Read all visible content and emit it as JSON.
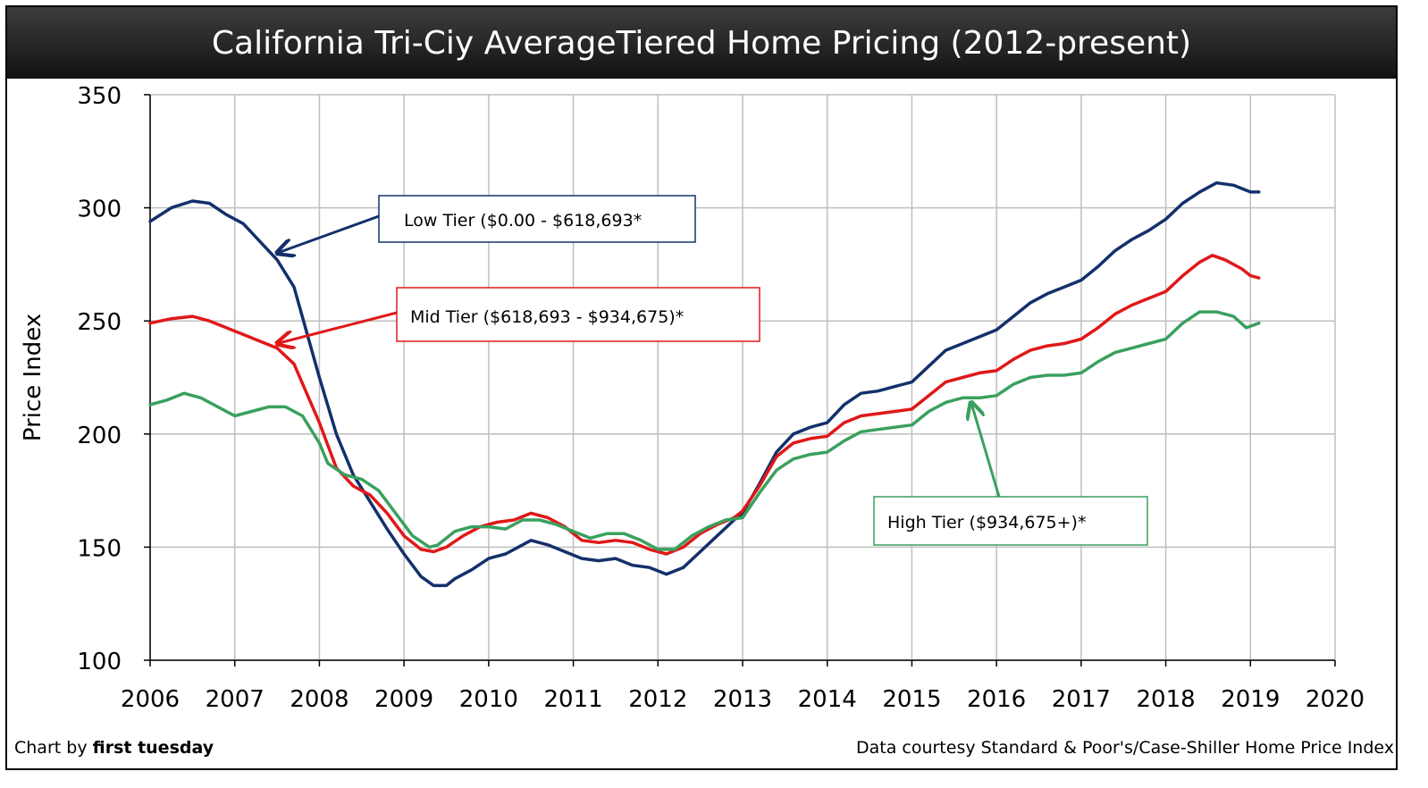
{
  "chart_data": {
    "type": "line",
    "title": "California Tri-Ciy AverageTiered Home Pricing (2012-present)",
    "ylabel": "Price Index",
    "xlabel": "",
    "xlim": [
      2006,
      2020
    ],
    "ylim": [
      100,
      350
    ],
    "x_ticks": [
      "2006",
      "2007",
      "2008",
      "2009",
      "2010",
      "2011",
      "2012",
      "2013",
      "2014",
      "2015",
      "2016",
      "2017",
      "2018",
      "2019",
      "2020"
    ],
    "y_ticks": [
      "100",
      "150",
      "200",
      "250",
      "300",
      "350"
    ],
    "grid": true,
    "colors": {
      "low": "#13306b",
      "mid": "#e01818",
      "high": "#3aa05e"
    },
    "series": [
      {
        "key": "low",
        "name": "Low Tier ($0.00 - $618,693*",
        "color": "#13306b",
        "points": [
          [
            2006.0,
            294
          ],
          [
            2006.25,
            300
          ],
          [
            2006.5,
            303
          ],
          [
            2006.7,
            302
          ],
          [
            2006.9,
            297
          ],
          [
            2007.1,
            293
          ],
          [
            2007.3,
            285
          ],
          [
            2007.5,
            277
          ],
          [
            2007.7,
            265
          ],
          [
            2007.85,
            245
          ],
          [
            2008.0,
            225
          ],
          [
            2008.2,
            200
          ],
          [
            2008.4,
            182
          ],
          [
            2008.6,
            170
          ],
          [
            2008.8,
            158
          ],
          [
            2009.0,
            147
          ],
          [
            2009.2,
            137
          ],
          [
            2009.35,
            133
          ],
          [
            2009.5,
            133
          ],
          [
            2009.6,
            136
          ],
          [
            2009.8,
            140
          ],
          [
            2010.0,
            145
          ],
          [
            2010.2,
            147
          ],
          [
            2010.35,
            150
          ],
          [
            2010.5,
            153
          ],
          [
            2010.7,
            151
          ],
          [
            2010.9,
            148
          ],
          [
            2011.1,
            145
          ],
          [
            2011.3,
            144
          ],
          [
            2011.5,
            145
          ],
          [
            2011.7,
            142
          ],
          [
            2011.9,
            141
          ],
          [
            2012.1,
            138
          ],
          [
            2012.3,
            141
          ],
          [
            2012.5,
            148
          ],
          [
            2012.7,
            155
          ],
          [
            2012.9,
            162
          ],
          [
            2013.0,
            165
          ],
          [
            2013.2,
            178
          ],
          [
            2013.4,
            192
          ],
          [
            2013.6,
            200
          ],
          [
            2013.8,
            203
          ],
          [
            2014.0,
            205
          ],
          [
            2014.2,
            213
          ],
          [
            2014.4,
            218
          ],
          [
            2014.6,
            219
          ],
          [
            2014.8,
            221
          ],
          [
            2015.0,
            223
          ],
          [
            2015.2,
            230
          ],
          [
            2015.4,
            237
          ],
          [
            2015.6,
            240
          ],
          [
            2015.8,
            243
          ],
          [
            2016.0,
            246
          ],
          [
            2016.2,
            252
          ],
          [
            2016.4,
            258
          ],
          [
            2016.6,
            262
          ],
          [
            2016.8,
            265
          ],
          [
            2017.0,
            268
          ],
          [
            2017.2,
            274
          ],
          [
            2017.4,
            281
          ],
          [
            2017.6,
            286
          ],
          [
            2017.8,
            290
          ],
          [
            2018.0,
            295
          ],
          [
            2018.2,
            302
          ],
          [
            2018.4,
            307
          ],
          [
            2018.6,
            311
          ],
          [
            2018.8,
            310
          ],
          [
            2019.0,
            307
          ],
          [
            2019.1,
            307
          ]
        ]
      },
      {
        "key": "mid",
        "name": "Mid Tier ($618,693 - $934,675)*",
        "color": "#e01818",
        "points": [
          [
            2006.0,
            249
          ],
          [
            2006.25,
            251
          ],
          [
            2006.5,
            252
          ],
          [
            2006.7,
            250
          ],
          [
            2006.9,
            247
          ],
          [
            2007.1,
            244
          ],
          [
            2007.3,
            241
          ],
          [
            2007.5,
            238
          ],
          [
            2007.7,
            231
          ],
          [
            2007.85,
            218
          ],
          [
            2008.0,
            205
          ],
          [
            2008.2,
            185
          ],
          [
            2008.4,
            177
          ],
          [
            2008.6,
            173
          ],
          [
            2008.8,
            165
          ],
          [
            2009.0,
            155
          ],
          [
            2009.2,
            149
          ],
          [
            2009.35,
            148
          ],
          [
            2009.5,
            150
          ],
          [
            2009.7,
            155
          ],
          [
            2009.9,
            159
          ],
          [
            2010.1,
            161
          ],
          [
            2010.3,
            162
          ],
          [
            2010.5,
            165
          ],
          [
            2010.7,
            163
          ],
          [
            2010.9,
            159
          ],
          [
            2011.1,
            153
          ],
          [
            2011.3,
            152
          ],
          [
            2011.5,
            153
          ],
          [
            2011.7,
            152
          ],
          [
            2011.9,
            149
          ],
          [
            2012.1,
            147
          ],
          [
            2012.3,
            150
          ],
          [
            2012.5,
            156
          ],
          [
            2012.7,
            160
          ],
          [
            2012.9,
            163
          ],
          [
            2013.0,
            166
          ],
          [
            2013.2,
            177
          ],
          [
            2013.4,
            190
          ],
          [
            2013.6,
            196
          ],
          [
            2013.8,
            198
          ],
          [
            2014.0,
            199
          ],
          [
            2014.2,
            205
          ],
          [
            2014.4,
            208
          ],
          [
            2014.6,
            209
          ],
          [
            2014.8,
            210
          ],
          [
            2015.0,
            211
          ],
          [
            2015.2,
            217
          ],
          [
            2015.4,
            223
          ],
          [
            2015.6,
            225
          ],
          [
            2015.8,
            227
          ],
          [
            2016.0,
            228
          ],
          [
            2016.2,
            233
          ],
          [
            2016.4,
            237
          ],
          [
            2016.6,
            239
          ],
          [
            2016.8,
            240
          ],
          [
            2017.0,
            242
          ],
          [
            2017.2,
            247
          ],
          [
            2017.4,
            253
          ],
          [
            2017.6,
            257
          ],
          [
            2017.8,
            260
          ],
          [
            2018.0,
            263
          ],
          [
            2018.2,
            270
          ],
          [
            2018.4,
            276
          ],
          [
            2018.55,
            279
          ],
          [
            2018.7,
            277
          ],
          [
            2018.9,
            273
          ],
          [
            2019.0,
            270
          ],
          [
            2019.1,
            269
          ]
        ]
      },
      {
        "key": "high",
        "name": "High Tier ($934,675+)*",
        "color": "#3aa05e",
        "points": [
          [
            2006.0,
            213
          ],
          [
            2006.2,
            215
          ],
          [
            2006.4,
            218
          ],
          [
            2006.6,
            216
          ],
          [
            2006.8,
            212
          ],
          [
            2007.0,
            208
          ],
          [
            2007.2,
            210
          ],
          [
            2007.4,
            212
          ],
          [
            2007.6,
            212
          ],
          [
            2007.8,
            208
          ],
          [
            2008.0,
            196
          ],
          [
            2008.1,
            187
          ],
          [
            2008.3,
            182
          ],
          [
            2008.5,
            180
          ],
          [
            2008.7,
            175
          ],
          [
            2008.9,
            165
          ],
          [
            2009.1,
            155
          ],
          [
            2009.3,
            150
          ],
          [
            2009.4,
            151
          ],
          [
            2009.6,
            157
          ],
          [
            2009.8,
            159
          ],
          [
            2010.0,
            159
          ],
          [
            2010.2,
            158
          ],
          [
            2010.4,
            162
          ],
          [
            2010.6,
            162
          ],
          [
            2010.8,
            160
          ],
          [
            2011.0,
            157
          ],
          [
            2011.2,
            154
          ],
          [
            2011.4,
            156
          ],
          [
            2011.6,
            156
          ],
          [
            2011.8,
            153
          ],
          [
            2012.0,
            149
          ],
          [
            2012.2,
            149
          ],
          [
            2012.4,
            155
          ],
          [
            2012.6,
            159
          ],
          [
            2012.8,
            162
          ],
          [
            2013.0,
            163
          ],
          [
            2013.2,
            174
          ],
          [
            2013.4,
            184
          ],
          [
            2013.6,
            189
          ],
          [
            2013.8,
            191
          ],
          [
            2014.0,
            192
          ],
          [
            2014.2,
            197
          ],
          [
            2014.4,
            201
          ],
          [
            2014.6,
            202
          ],
          [
            2014.8,
            203
          ],
          [
            2015.0,
            204
          ],
          [
            2015.2,
            210
          ],
          [
            2015.4,
            214
          ],
          [
            2015.6,
            216
          ],
          [
            2015.8,
            216
          ],
          [
            2016.0,
            217
          ],
          [
            2016.2,
            222
          ],
          [
            2016.4,
            225
          ],
          [
            2016.6,
            226
          ],
          [
            2016.8,
            226
          ],
          [
            2017.0,
            227
          ],
          [
            2017.2,
            232
          ],
          [
            2017.4,
            236
          ],
          [
            2017.6,
            238
          ],
          [
            2017.8,
            240
          ],
          [
            2018.0,
            242
          ],
          [
            2018.2,
            249
          ],
          [
            2018.4,
            254
          ],
          [
            2018.6,
            254
          ],
          [
            2018.8,
            252
          ],
          [
            2018.95,
            247
          ],
          [
            2019.1,
            249
          ]
        ]
      }
    ],
    "annotations": [
      {
        "key": "low",
        "text": "Low Tier ($0.00 - $618,693*",
        "arrow_to": [
          2007.5,
          280
        ]
      },
      {
        "key": "mid",
        "text": "Mid Tier ($618,693 - $934,675)*",
        "arrow_to": [
          2007.5,
          240
        ]
      },
      {
        "key": "high",
        "text": "High Tier ($934,675+)*",
        "arrow_to": [
          2015.7,
          214
        ]
      }
    ]
  },
  "footer": {
    "left_prefix": "Chart by ",
    "left_brand": "first tuesday",
    "right": "Data courtesy Standard & Poor's/Case-Shiller Home Price Index"
  }
}
